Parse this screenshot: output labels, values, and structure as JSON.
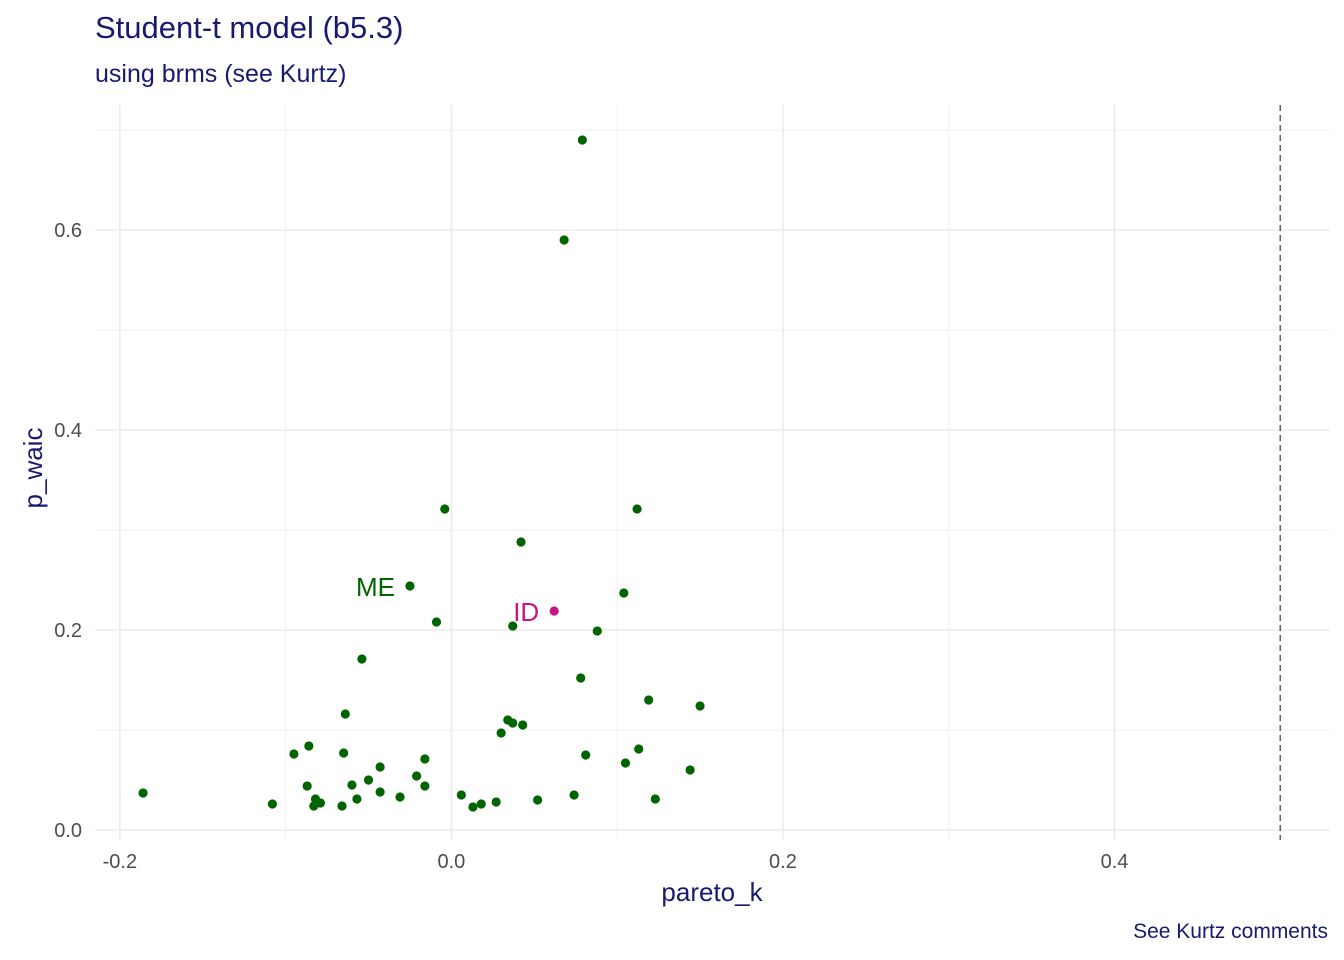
{
  "chart_data": {
    "type": "scatter",
    "title": "Student-t model (b5.3)",
    "subtitle": "using brms (see Kurtz)",
    "caption": "See Kurtz comments",
    "xlabel": "pareto_k",
    "ylabel": "p_waic",
    "xlim": [
      -0.215,
      0.53
    ],
    "ylim": [
      -0.01,
      0.725
    ],
    "x_ticks": [
      -0.2,
      0.0,
      0.2,
      0.4
    ],
    "x_tick_labels": [
      "-0.2",
      "0.0",
      "0.2",
      "0.4"
    ],
    "y_ticks": [
      0.0,
      0.2,
      0.4,
      0.6
    ],
    "y_tick_labels": [
      "0.0",
      "0.2",
      "0.4",
      "0.6"
    ],
    "reference_line": {
      "x": 0.5,
      "style": "dashed",
      "color": "#666666"
    },
    "grid": true,
    "colors": {
      "points": "#006400",
      "highlight": "#c71585",
      "text": "#191970"
    },
    "points": [
      {
        "x": 0.079,
        "y": 0.69
      },
      {
        "x": 0.068,
        "y": 0.59
      },
      {
        "x": -0.004,
        "y": 0.321
      },
      {
        "x": 0.112,
        "y": 0.321
      },
      {
        "x": 0.042,
        "y": 0.288
      },
      {
        "x": -0.025,
        "y": 0.244
      },
      {
        "x": 0.104,
        "y": 0.237
      },
      {
        "x": -0.009,
        "y": 0.208
      },
      {
        "x": 0.037,
        "y": 0.204
      },
      {
        "x": 0.088,
        "y": 0.199
      },
      {
        "x": -0.054,
        "y": 0.171
      },
      {
        "x": 0.078,
        "y": 0.152
      },
      {
        "x": 0.119,
        "y": 0.13
      },
      {
        "x": 0.15,
        "y": 0.124
      },
      {
        "x": -0.064,
        "y": 0.116
      },
      {
        "x": 0.034,
        "y": 0.11
      },
      {
        "x": 0.037,
        "y": 0.107
      },
      {
        "x": 0.043,
        "y": 0.105
      },
      {
        "x": 0.03,
        "y": 0.097
      },
      {
        "x": -0.086,
        "y": 0.084
      },
      {
        "x": 0.113,
        "y": 0.081
      },
      {
        "x": -0.095,
        "y": 0.076
      },
      {
        "x": -0.065,
        "y": 0.077
      },
      {
        "x": 0.081,
        "y": 0.075
      },
      {
        "x": -0.016,
        "y": 0.071
      },
      {
        "x": 0.105,
        "y": 0.067
      },
      {
        "x": -0.043,
        "y": 0.063
      },
      {
        "x": 0.144,
        "y": 0.06
      },
      {
        "x": -0.021,
        "y": 0.054
      },
      {
        "x": -0.05,
        "y": 0.05
      },
      {
        "x": -0.087,
        "y": 0.044
      },
      {
        "x": -0.06,
        "y": 0.045
      },
      {
        "x": -0.016,
        "y": 0.044
      },
      {
        "x": -0.186,
        "y": 0.037
      },
      {
        "x": -0.043,
        "y": 0.038
      },
      {
        "x": 0.074,
        "y": 0.035
      },
      {
        "x": 0.006,
        "y": 0.035
      },
      {
        "x": -0.031,
        "y": 0.033
      },
      {
        "x": -0.082,
        "y": 0.031
      },
      {
        "x": -0.057,
        "y": 0.031
      },
      {
        "x": 0.052,
        "y": 0.03
      },
      {
        "x": 0.123,
        "y": 0.031
      },
      {
        "x": -0.079,
        "y": 0.027
      },
      {
        "x": -0.108,
        "y": 0.026
      },
      {
        "x": 0.027,
        "y": 0.028
      },
      {
        "x": 0.018,
        "y": 0.026
      },
      {
        "x": -0.083,
        "y": 0.024
      },
      {
        "x": -0.066,
        "y": 0.024
      },
      {
        "x": 0.013,
        "y": 0.023
      }
    ],
    "highlights": [
      {
        "label": "ID",
        "x": 0.062,
        "y": 0.219,
        "color": "#c71585"
      }
    ],
    "labels": [
      {
        "text": "ME",
        "x": -0.025,
        "y": 0.244,
        "color": "#006400"
      },
      {
        "text": "ID",
        "x": 0.062,
        "y": 0.219,
        "color": "#c71585"
      }
    ]
  }
}
